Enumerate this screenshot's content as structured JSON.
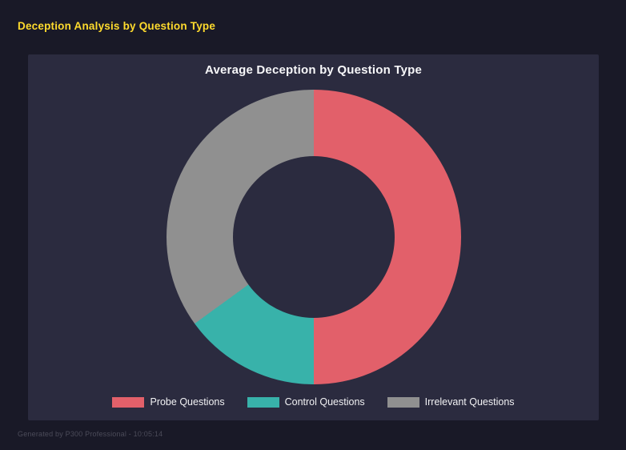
{
  "header": {
    "title": "Deception Analysis by Question Type"
  },
  "chart_data": {
    "type": "pie",
    "subtype": "donut",
    "title": "Average Deception by Question Type",
    "categories": [
      "Probe Questions",
      "Control Questions",
      "Irrelevant Questions"
    ],
    "values": [
      50,
      15,
      35
    ],
    "colors": [
      "#e2606a",
      "#38b2aa",
      "#909090"
    ],
    "legend_position": "bottom",
    "hole_ratio": 0.55,
    "start_angle_deg": 0,
    "direction": "clockwise"
  },
  "footer": {
    "text": "Generated by P300 Professional - 10:05:14"
  },
  "colors": {
    "background": "#191927",
    "panel": "#2b2b3f",
    "title_accent": "#ffdb2d",
    "chart_title_text": "#f7f7f9",
    "legend_text": "#f2f2f4",
    "footer_text": "#4b4b59"
  }
}
